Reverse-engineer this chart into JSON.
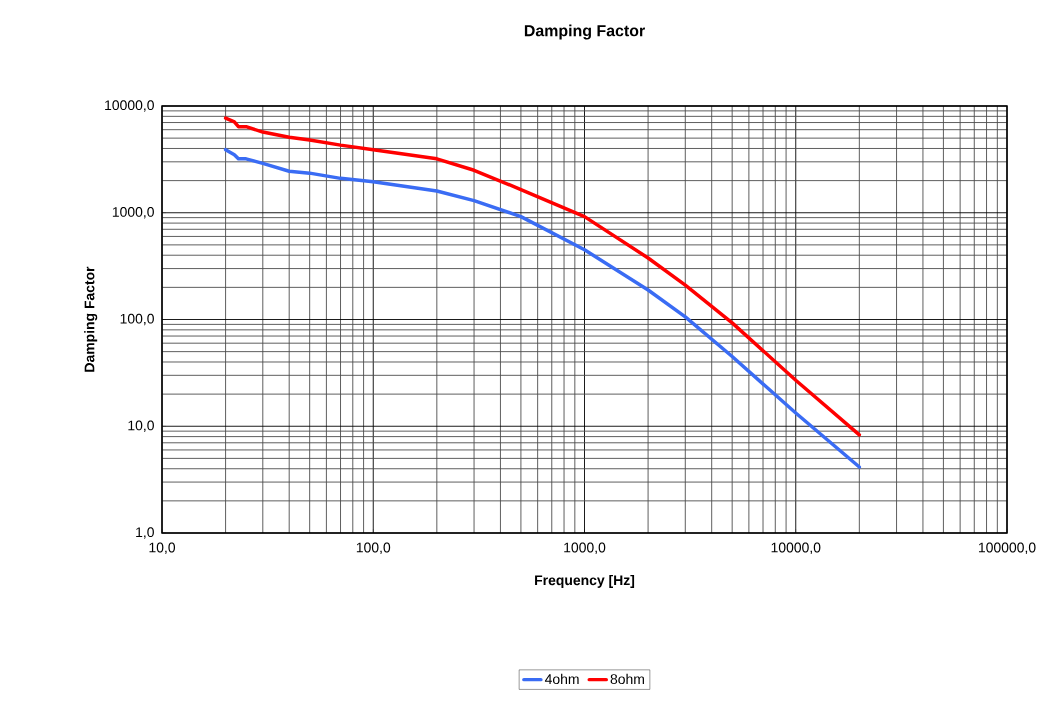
{
  "chart_data": {
    "type": "line",
    "title": "Damping Factor",
    "xlabel": "Frequency [Hz]",
    "ylabel": "Damping Factor",
    "log": "xy",
    "grid": true,
    "legend": "bottom",
    "marker": "none",
    "line_style": "solid",
    "xlim": [
      10,
      100000
    ],
    "ylim": [
      1,
      10000
    ],
    "xticks": [
      {
        "value": 10,
        "label": "10,0"
      },
      {
        "value": 100,
        "label": "100,0"
      },
      {
        "value": 1000,
        "label": "1000,0"
      },
      {
        "value": 10000,
        "label": "10000,0"
      },
      {
        "value": 100000,
        "label": "100000,0"
      }
    ],
    "yticks": [
      {
        "value": 1,
        "label": "1,0"
      },
      {
        "value": 10,
        "label": "10,0"
      },
      {
        "value": 100,
        "label": "100,0"
      },
      {
        "value": 1000,
        "label": "1000,0"
      },
      {
        "value": 10000,
        "label": "10000,0"
      }
    ],
    "x": [
      20,
      22,
      23,
      25,
      30,
      40,
      50,
      70,
      100,
      200,
      300,
      500,
      1000,
      2000,
      3000,
      5000,
      10000,
      20000
    ],
    "series": [
      {
        "name": "4ohm",
        "color": "#3a6cf4",
        "values": [
          3900,
          3500,
          3200,
          3200,
          2900,
          2450,
          2350,
          2100,
          1950,
          1600,
          1300,
          920,
          450,
          189,
          106,
          45,
          13.3,
          4.15
        ]
      },
      {
        "name": "8ohm",
        "color": "#ff0000",
        "values": [
          7700,
          7100,
          6400,
          6400,
          5700,
          5100,
          4800,
          4300,
          3900,
          3200,
          2500,
          1650,
          920,
          377,
          210,
          93,
          27,
          8.3
        ]
      }
    ]
  }
}
